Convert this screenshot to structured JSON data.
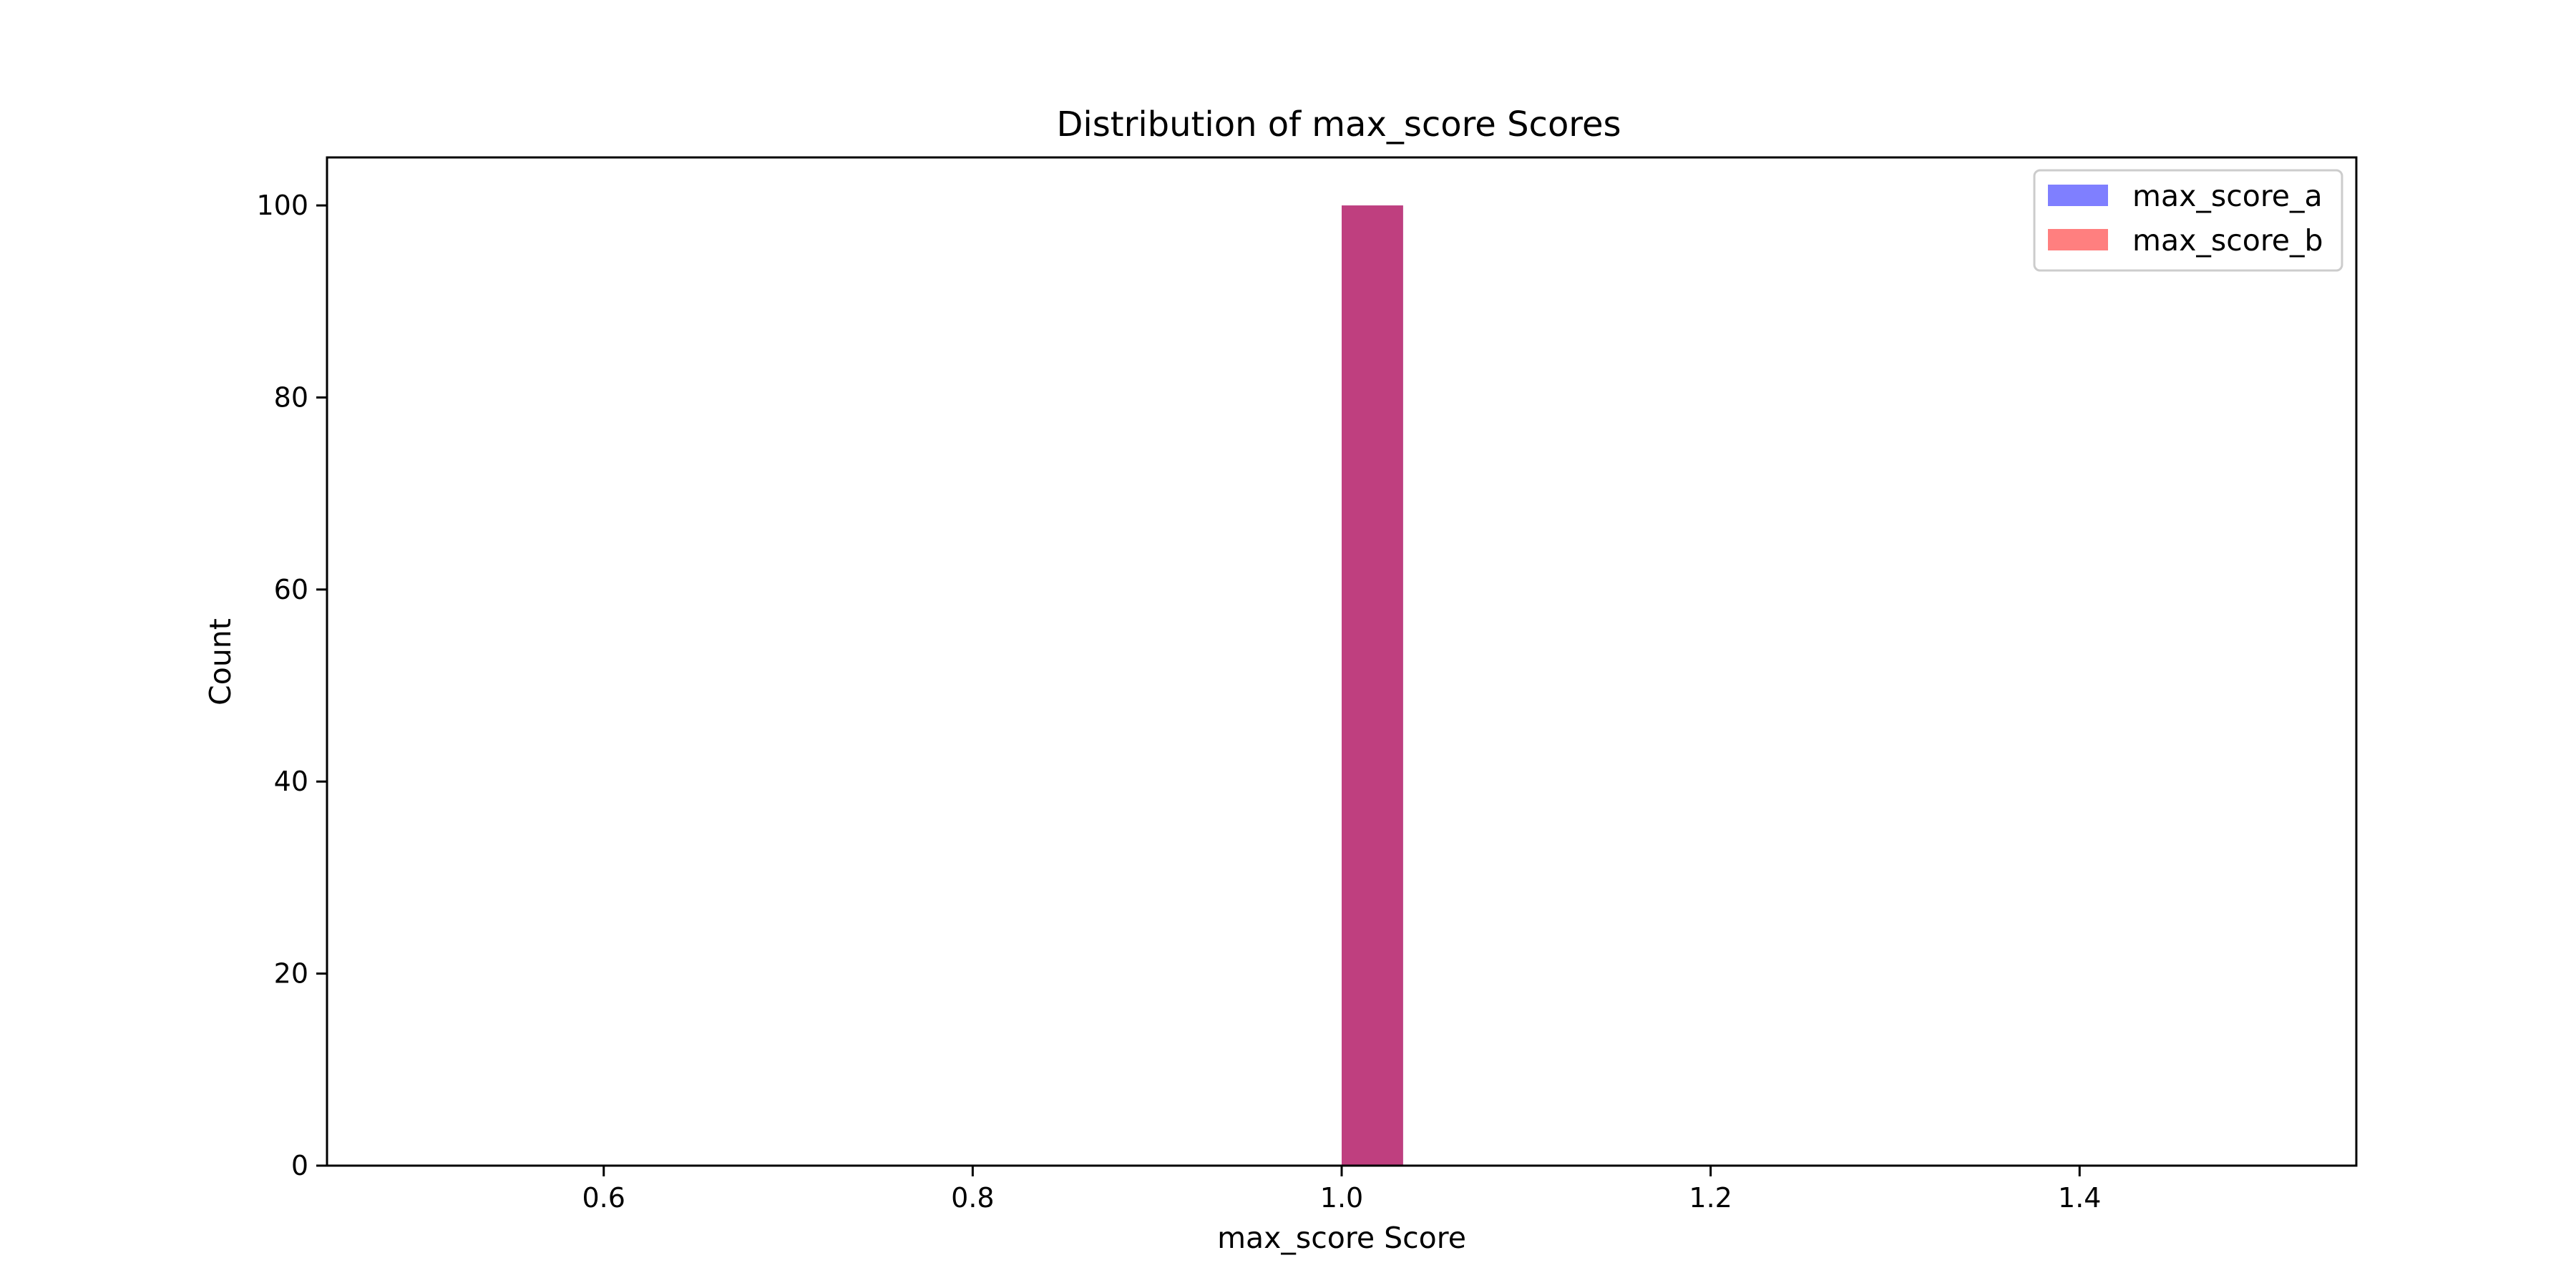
{
  "chart_data": {
    "type": "bar",
    "title": "Distribution of max_score Scores",
    "xlabel": "max_score Score",
    "ylabel": "Count",
    "xlim": [
      0.45,
      1.55
    ],
    "ylim": [
      0,
      105
    ],
    "xticks": [
      0.6,
      0.8,
      1.0,
      1.2,
      1.4
    ],
    "xtick_labels": [
      "0.6",
      "0.8",
      "1.0",
      "1.2",
      "1.4"
    ],
    "yticks": [
      0,
      20,
      40,
      60,
      80,
      100
    ],
    "ytick_labels": [
      "0",
      "20",
      "40",
      "60",
      "80",
      "100"
    ],
    "grid": false,
    "legend_position": "top-right",
    "series": [
      {
        "name": "max_score_a",
        "color": "#0000ff",
        "opacity": 0.5,
        "bins": [
          {
            "x0": 1.0,
            "x1": 1.0333,
            "count": 100
          }
        ]
      },
      {
        "name": "max_score_b",
        "color": "#ff0000",
        "opacity": 0.5,
        "bins": [
          {
            "x0": 1.0,
            "x1": 1.0333,
            "count": 100
          }
        ]
      }
    ]
  }
}
